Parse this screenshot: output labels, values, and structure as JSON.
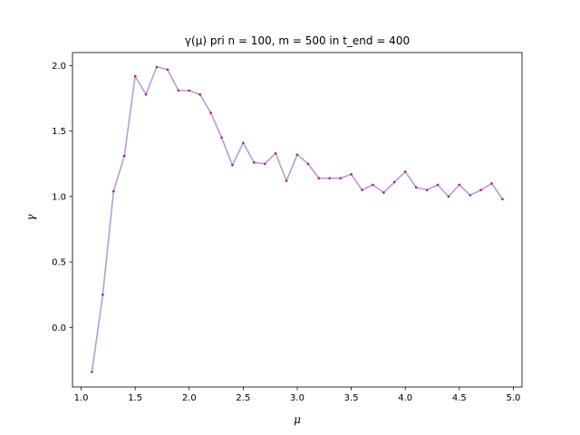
{
  "chart_data": {
    "type": "line",
    "title": "γ(μ) pri n = 100, m = 500 in t_end = 400",
    "xlabel": "μ",
    "ylabel": "γ",
    "xlim": [
      0.92,
      5.08
    ],
    "ylim": [
      -0.455,
      2.1
    ],
    "xticks": [
      "1.0",
      "1.5",
      "2.0",
      "2.5",
      "3.0",
      "3.5",
      "4.0",
      "4.5",
      "5.0"
    ],
    "yticks": [
      "0.0",
      "0.5",
      "1.0",
      "1.5",
      "2.0"
    ],
    "grid": false,
    "line_color": "#b39ddb",
    "marker_color": "#c2185b",
    "series": [
      {
        "x": [
          1.1,
          1.2,
          1.3,
          1.4,
          1.5,
          1.6,
          1.7,
          1.8,
          1.9,
          2.0,
          2.1,
          2.2,
          2.3,
          2.4,
          2.5,
          2.6,
          2.7,
          2.8,
          2.9,
          3.0,
          3.1,
          3.2,
          3.3,
          3.4,
          3.5,
          3.6,
          3.7,
          3.8,
          3.9,
          4.0,
          4.1,
          4.2,
          4.3,
          4.4,
          4.5,
          4.6,
          4.7,
          4.8,
          4.9
        ],
        "values": [
          -0.34,
          0.25,
          1.04,
          1.31,
          1.92,
          1.78,
          1.99,
          1.97,
          1.81,
          1.81,
          1.78,
          1.64,
          1.45,
          1.24,
          1.41,
          1.26,
          1.25,
          1.33,
          1.12,
          1.32,
          1.25,
          1.14,
          1.14,
          1.14,
          1.17,
          1.05,
          1.09,
          1.03,
          1.11,
          1.19,
          1.07,
          1.05,
          1.09,
          1.0,
          1.09,
          1.01,
          1.05,
          1.1,
          0.98
        ]
      }
    ]
  }
}
